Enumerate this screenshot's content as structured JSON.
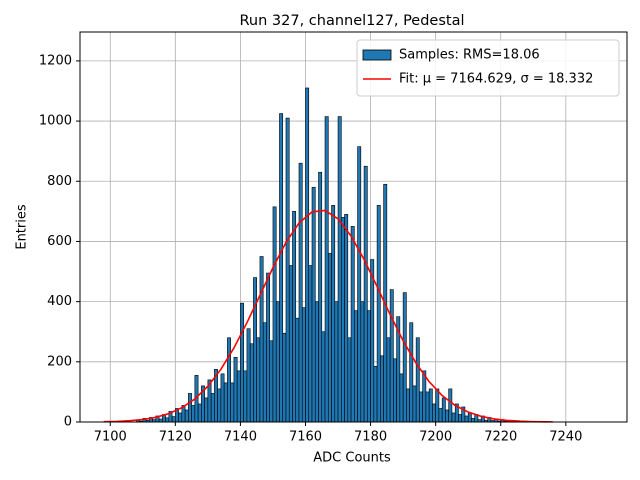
{
  "chart_data": {
    "type": "histogram",
    "title": "Run 327, channel127, Pedestal",
    "xlabel": "ADC Counts",
    "ylabel": "Entries",
    "xlim": [
      7090.7,
      7258.8
    ],
    "ylim": [
      0,
      1296
    ],
    "xticks": [
      7100,
      7120,
      7140,
      7160,
      7180,
      7200,
      7220,
      7240
    ],
    "yticks": [
      0,
      200,
      400,
      600,
      800,
      1000,
      1200
    ],
    "grid": true,
    "legend": "upper right",
    "bins": [
      7108,
      7109,
      7110,
      7111,
      7112,
      7113,
      7114,
      7115,
      7116,
      7117,
      7118,
      7119,
      7120,
      7121,
      7122,
      7123,
      7124,
      7125,
      7126,
      7127,
      7128,
      7129,
      7130,
      7131,
      7132,
      7133,
      7134,
      7135,
      7136,
      7137,
      7138,
      7139,
      7140,
      7141,
      7142,
      7143,
      7144,
      7145,
      7146,
      7147,
      7148,
      7149,
      7150,
      7151,
      7152,
      7153,
      7154,
      7155,
      7156,
      7157,
      7158,
      7159,
      7160,
      7161,
      7162,
      7163,
      7164,
      7165,
      7166,
      7167,
      7168,
      7169,
      7170,
      7171,
      7172,
      7173,
      7174,
      7175,
      7176,
      7177,
      7178,
      7179,
      7180,
      7181,
      7182,
      7183,
      7184,
      7185,
      7186,
      7187,
      7188,
      7189,
      7190,
      7191,
      7192,
      7193,
      7194,
      7195,
      7196,
      7197,
      7198,
      7199,
      7200,
      7201,
      7202,
      7203,
      7204,
      7205,
      7206,
      7207,
      7208,
      7209,
      7210,
      7211,
      7212,
      7213,
      7214,
      7215,
      7216,
      7217,
      7218,
      7219,
      7220,
      7221,
      7222,
      7223,
      7224,
      7225
    ],
    "series": [
      {
        "name": "Samples: RMS=18.06",
        "type": "histogram",
        "color": "#1f77b4",
        "edgecolor": "#000000",
        "values": [
          5,
          3,
          12,
          6,
          15,
          8,
          20,
          10,
          25,
          14,
          35,
          18,
          45,
          30,
          55,
          40,
          95,
          55,
          155,
          60,
          120,
          80,
          140,
          95,
          175,
          110,
          160,
          130,
          280,
          130,
          215,
          170,
          395,
          170,
          310,
          260,
          480,
          280,
          550,
          330,
          495,
          270,
          715,
          400,
          1025,
          295,
          1010,
          520,
          700,
          345,
          860,
          380,
          1110,
          520,
          780,
          400,
          830,
          300,
          1015,
          560,
          720,
          400,
          1015,
          680,
          690,
          280,
          650,
          370,
          915,
          400,
          850,
          370,
          540,
          185,
          720,
          220,
          790,
          280,
          440,
          210,
          350,
          160,
          430,
          110,
          330,
          120,
          280,
          100,
          170,
          100,
          110,
          60,
          110,
          45,
          80,
          40,
          110,
          30,
          60,
          25,
          50,
          20,
          30,
          12,
          25,
          8,
          20,
          6,
          15,
          5,
          10,
          3,
          8,
          2,
          5,
          1,
          3
        ]
      },
      {
        "name": "Fit: μ = 7164.629, σ = 18.332",
        "type": "line",
        "color": "#ff0000",
        "x": [
          7098,
          7102,
          7106,
          7110,
          7114,
          7118,
          7122,
          7126,
          7130,
          7134,
          7138,
          7142,
          7146,
          7150,
          7154,
          7158,
          7162,
          7166,
          7170,
          7174,
          7178,
          7182,
          7186,
          7190,
          7194,
          7198,
          7202,
          7206,
          7210,
          7214,
          7218,
          7222,
          7226,
          7230,
          7234,
          7236
        ],
        "values": [
          1.0,
          2.1,
          4.3,
          8.3,
          15.6,
          27.9,
          47.4,
          76.6,
          119,
          175,
          246,
          330,
          421,
          513,
          597,
          661,
          698,
          703,
          675,
          618,
          540,
          450,
          357,
          270,
          195,
          134,
          88,
          55,
          33,
          18.7,
          10.1,
          5.2,
          2.6,
          1.2,
          0.5,
          0.4
        ]
      }
    ]
  }
}
